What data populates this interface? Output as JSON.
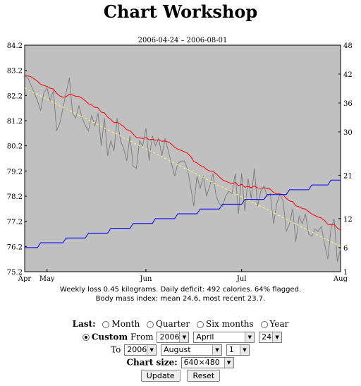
{
  "page": {
    "title": "Chart Workshop"
  },
  "chart_data": {
    "type": "line",
    "title": "2006-04-24 – 2006-08-01",
    "x_tick_labels": [
      "Apr",
      "May",
      "Jun",
      "Jul",
      "Aug"
    ],
    "y_left": {
      "ticks": [
        "84.2",
        "83.2",
        "82.2",
        "81.2",
        "80.2",
        "79.2",
        "78.2",
        "77.2",
        "76.2",
        "75.2"
      ],
      "range": [
        75.2,
        84.2
      ]
    },
    "y_right": {
      "ticks": [
        "48",
        "42",
        "36",
        "30",
        "21",
        "12",
        "6",
        "1"
      ],
      "range": [
        1,
        48
      ]
    },
    "grid": false,
    "series": [
      {
        "axis": "left",
        "color": "#808080",
        "values": [
          83.0,
          82.9,
          82.6,
          82.3,
          82.0,
          81.6,
          82.3,
          82.5,
          82.0,
          82.4,
          80.8,
          81.1,
          81.7,
          82.3,
          82.9,
          81.5,
          81.3,
          81.8,
          81.3,
          81.0,
          80.8,
          81.4,
          81.0,
          81.5,
          80.2,
          81.3,
          79.8,
          80.4,
          80.0,
          81.3,
          80.4,
          80.1,
          79.6,
          80.6,
          79.4,
          79.3,
          80.4,
          80.2,
          80.9,
          79.6,
          80.6,
          80.2,
          80.5,
          79.8,
          80.5,
          80.0,
          79.5,
          79.0,
          79.5,
          79.6,
          79.6,
          79.3,
          78.6,
          77.8,
          79.0,
          78.5,
          79.0,
          78.2,
          78.6,
          79.1,
          78.2,
          77.9,
          77.8,
          78.2,
          78.4,
          78.3,
          79.1,
          77.5,
          79.1,
          77.6,
          78.9,
          78.1,
          79.3,
          77.8,
          78.4,
          78.6,
          78.2,
          78.3,
          77.1,
          77.9,
          78.3,
          78.0,
          76.8,
          77.1,
          77.7,
          76.4,
          77.4,
          77.1,
          77.5,
          76.7,
          76.6,
          76.9,
          76.8,
          77.0,
          76.3,
          75.7,
          76.9,
          77.3,
          75.6,
          76.1
        ]
      },
      {
        "axis": "left",
        "color": "#ff0000",
        "values": [
          83.0,
          82.98,
          82.94,
          82.86,
          82.77,
          82.65,
          82.6,
          82.56,
          82.49,
          82.46,
          82.29,
          82.18,
          82.13,
          82.15,
          82.26,
          82.22,
          82.17,
          82.16,
          82.09,
          81.99,
          81.87,
          81.82,
          81.73,
          81.71,
          81.54,
          81.51,
          81.34,
          81.25,
          81.12,
          81.14,
          81.06,
          80.97,
          80.84,
          80.81,
          80.67,
          80.53,
          80.52,
          80.49,
          80.53,
          80.44,
          80.46,
          80.43,
          80.44,
          80.38,
          80.39,
          80.35,
          80.27,
          80.14,
          80.07,
          80.02,
          79.97,
          79.91,
          79.78,
          79.58,
          79.52,
          79.42,
          79.38,
          79.26,
          79.2,
          79.19,
          79.09,
          78.97,
          78.85,
          78.79,
          78.74,
          78.7,
          78.74,
          78.62,
          78.67,
          78.56,
          78.59,
          78.54,
          78.61,
          78.53,
          78.52,
          78.53,
          78.5,
          78.48,
          78.34,
          78.29,
          78.29,
          78.26,
          78.11,
          78.01,
          77.98,
          77.82,
          77.78,
          77.71,
          77.69,
          77.59,
          77.49,
          77.43,
          77.37,
          77.33,
          77.23,
          77.08,
          77.06,
          77.08,
          76.93,
          76.85
        ]
      },
      {
        "axis": "left",
        "color": "#ffff66",
        "style": "dashed",
        "values": [
          82.5,
          76.2
        ]
      },
      {
        "axis": "right",
        "color": "#0000ff",
        "values": [
          6,
          6,
          6,
          6,
          6,
          7,
          7,
          7,
          7,
          7,
          7,
          7,
          7,
          8,
          8,
          8,
          8,
          8,
          8,
          8,
          9,
          9,
          9,
          9,
          9,
          9,
          9,
          10,
          10,
          10,
          10,
          10,
          10,
          10,
          11,
          11,
          11,
          11,
          11,
          11,
          11,
          12,
          12,
          12,
          12,
          12,
          12,
          12,
          13,
          13,
          13,
          13,
          13,
          13,
          13,
          14,
          14,
          14,
          14,
          14,
          14,
          14,
          15,
          15,
          15,
          15,
          15,
          15,
          15,
          16,
          16,
          16,
          16,
          16,
          16,
          16,
          17,
          17,
          17,
          17,
          17,
          17,
          17,
          18,
          18,
          18,
          18,
          18,
          18,
          18,
          19,
          19,
          19,
          19,
          19,
          19,
          20,
          20,
          20,
          20
        ]
      }
    ]
  },
  "stats": {
    "line1": "Weekly loss 0.45 kilograms.  Daily deficit: 492 calories.  64% flagged.",
    "line2": "Body mass index: mean 24.6, most recent 23.7."
  },
  "controls": {
    "last_label": "Last:",
    "period_options": [
      "Month",
      "Quarter",
      "Six months",
      "Year"
    ],
    "custom_label": "Custom",
    "from_label": "From",
    "from": {
      "year": "2006",
      "month": "April",
      "day": "24"
    },
    "to_label": "To",
    "to": {
      "year": "2006",
      "month": "August",
      "day": "1"
    },
    "size_label": "Chart size:",
    "size_value": "640×480",
    "update_label": "Update",
    "reset_label": "Reset"
  }
}
